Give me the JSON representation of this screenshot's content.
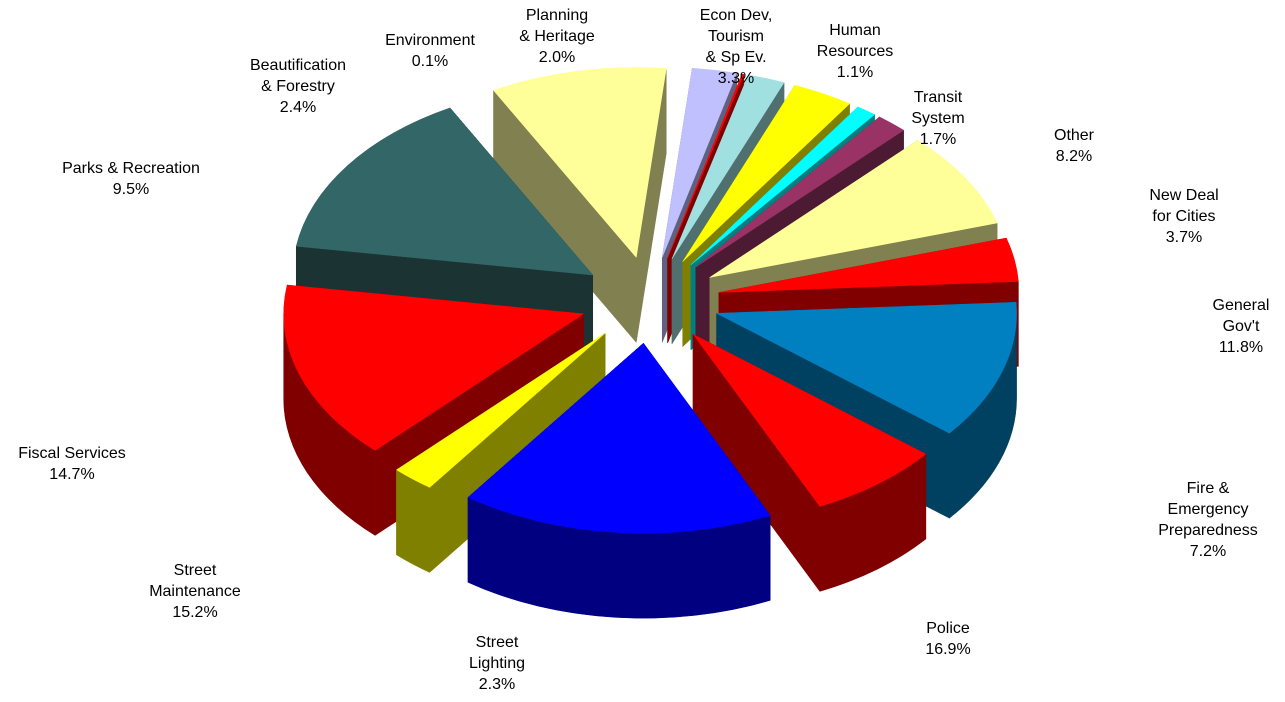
{
  "chart_data": {
    "type": "pie",
    "style": "3d-exploded",
    "legend": "none",
    "slices": [
      {
        "label": "Police",
        "value": 16.9,
        "value_label": "16.9%",
        "color": "#0000FF",
        "side_color": "#000080"
      },
      {
        "label": "Street\nLighting",
        "value": 2.3,
        "value_label": "2.3%",
        "color": "#FFFF00",
        "side_color": "#808000"
      },
      {
        "label": "Street\nMaintenance",
        "value": 15.2,
        "value_label": "15.2%",
        "color": "#FF0000",
        "side_color": "#800000"
      },
      {
        "label": "Fiscal Services",
        "value": 14.7,
        "value_label": "14.7%",
        "color": "#336666",
        "side_color": "#1C3333"
      },
      {
        "label": "Parks & Recreation",
        "value": 9.5,
        "value_label": "9.5%",
        "color": "#FFFF99",
        "side_color": "#808050"
      },
      {
        "label": "Beautification\n& Forestry",
        "value": 2.4,
        "value_label": "2.4%",
        "color": "#C0C0FF",
        "side_color": "#606080"
      },
      {
        "label": "Environment",
        "value": 0.1,
        "value_label": "0.1%",
        "color": "#FF0000",
        "side_color": "#800000"
      },
      {
        "label": "Planning\n& Heritage",
        "value": 2.0,
        "value_label": "2.0%",
        "color": "#A0E0E0",
        "side_color": "#507070"
      },
      {
        "label": "Econ Dev,\nTourism\n& Sp Ev.",
        "value": 3.3,
        "value_label": "3.3%",
        "color": "#FFFF00",
        "side_color": "#808000"
      },
      {
        "label": "Human\nResources",
        "value": 1.1,
        "value_label": "1.1%",
        "color": "#00FFFF",
        "side_color": "#008080"
      },
      {
        "label": "Transit\nSystem",
        "value": 1.7,
        "value_label": "1.7%",
        "color": "#993366",
        "side_color": "#4D1A33"
      },
      {
        "label": "Other",
        "value": 8.2,
        "value_label": "8.2%",
        "color": "#FFFF99",
        "side_color": "#808050"
      },
      {
        "label": "New Deal\nfor Cities",
        "value": 3.7,
        "value_label": "3.7%",
        "color": "#FF0000",
        "side_color": "#800000"
      },
      {
        "label": "General\nGov't",
        "value": 11.8,
        "value_label": "11.8%",
        "color": "#0080C0",
        "side_color": "#004060"
      },
      {
        "label": "Fire &\nEmergency\nPreparedness",
        "value": 7.2,
        "value_label": "7.2%",
        "color": "#FF0000",
        "side_color": "#800000"
      }
    ]
  }
}
